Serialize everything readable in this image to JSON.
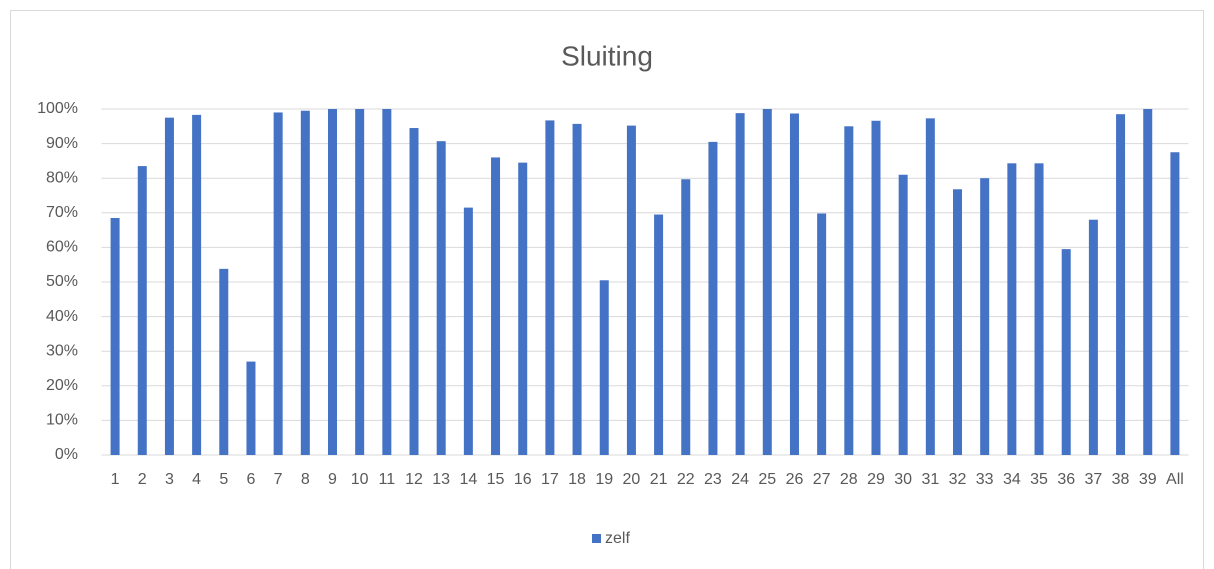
{
  "chart_data": {
    "type": "bar",
    "title": "Sluiting",
    "categories": [
      "1",
      "2",
      "3",
      "4",
      "5",
      "6",
      "7",
      "8",
      "9",
      "10",
      "11",
      "12",
      "13",
      "14",
      "15",
      "16",
      "17",
      "18",
      "19",
      "20",
      "21",
      "22",
      "23",
      "24",
      "25",
      "26",
      "27",
      "28",
      "29",
      "30",
      "31",
      "32",
      "33",
      "34",
      "35",
      "36",
      "37",
      "38",
      "39",
      "All"
    ],
    "series": [
      {
        "name": "zelf",
        "color": "#4472c4",
        "values": [
          68.5,
          83.5,
          97.5,
          98.3,
          53.8,
          27,
          99,
          99.5,
          100,
          100,
          100,
          94.5,
          90.7,
          71.5,
          86,
          84.5,
          96.7,
          95.7,
          50.5,
          95.2,
          69.5,
          79.7,
          90.5,
          98.8,
          100,
          98.7,
          69.8,
          95,
          96.6,
          81,
          97.3,
          76.8,
          80,
          84.3,
          84.3,
          59.5,
          68,
          98.5,
          100,
          87.5
        ]
      }
    ],
    "ylim": [
      0,
      100
    ],
    "yticks": [
      {
        "value": 0,
        "label": "0%"
      },
      {
        "value": 10,
        "label": "10%"
      },
      {
        "value": 20,
        "label": "20%"
      },
      {
        "value": 30,
        "label": "30%"
      },
      {
        "value": 40,
        "label": "40%"
      },
      {
        "value": 50,
        "label": "50%"
      },
      {
        "value": 60,
        "label": "60%"
      },
      {
        "value": 70,
        "label": "70%"
      },
      {
        "value": 80,
        "label": "80%"
      },
      {
        "value": 90,
        "label": "90%"
      },
      {
        "value": 100,
        "label": "100%"
      }
    ],
    "grid": true,
    "legend": "bottom"
  }
}
